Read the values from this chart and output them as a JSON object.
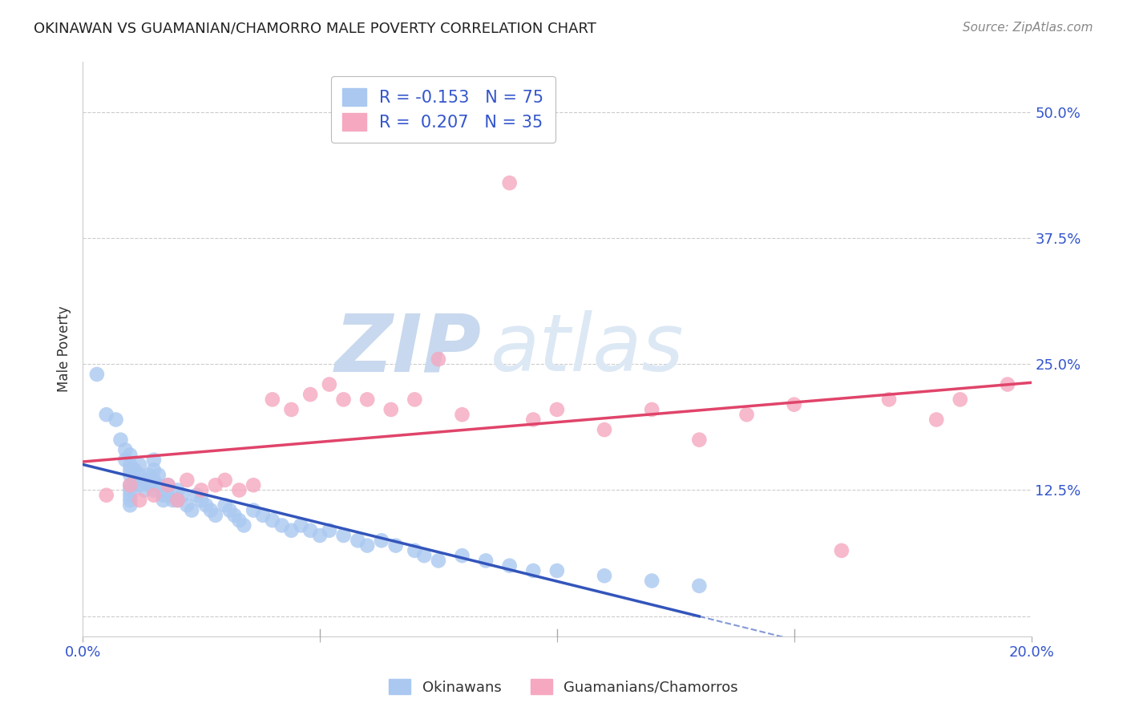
{
  "title": "OKINAWAN VS GUAMANIAN/CHAMORRO MALE POVERTY CORRELATION CHART",
  "source": "Source: ZipAtlas.com",
  "ylabel": "Male Poverty",
  "xlim": [
    0.0,
    0.2
  ],
  "ylim": [
    -0.02,
    0.55
  ],
  "ytick_vals": [
    0.0,
    0.125,
    0.25,
    0.375,
    0.5
  ],
  "ytick_labels": [
    "",
    "12.5%",
    "25.0%",
    "37.5%",
    "50.0%"
  ],
  "xtick_vals": [
    0.0,
    0.05,
    0.1,
    0.15,
    0.2
  ],
  "xtick_labels": [
    "0.0%",
    "",
    "",
    "",
    "20.0%"
  ],
  "background_color": "#ffffff",
  "grid_color": "#cccccc",
  "blue_color": "#aac8f0",
  "pink_color": "#f5a8c0",
  "blue_line_color": "#3355bb",
  "pink_line_color": "#e0446a",
  "blue_R": -0.153,
  "blue_N": 75,
  "pink_R": 0.207,
  "pink_N": 35,
  "watermark_zip": "ZIP",
  "watermark_atlas": "atlas",
  "watermark_color": "#ccddf5",
  "legend_label_blue": "Okinawans",
  "legend_label_pink": "Guamanians/Chamorros",
  "title_color": "#222222",
  "label_color": "#333333",
  "tick_label_color": "#3355cc",
  "source_color": "#888888",
  "blue_scatter_x": [
    0.003,
    0.005,
    0.007,
    0.008,
    0.009,
    0.009,
    0.01,
    0.01,
    0.01,
    0.01,
    0.01,
    0.01,
    0.01,
    0.01,
    0.01,
    0.011,
    0.011,
    0.012,
    0.012,
    0.012,
    0.013,
    0.013,
    0.014,
    0.014,
    0.015,
    0.015,
    0.015,
    0.015,
    0.016,
    0.016,
    0.017,
    0.017,
    0.018,
    0.018,
    0.019,
    0.02,
    0.02,
    0.021,
    0.022,
    0.023,
    0.024,
    0.025,
    0.026,
    0.027,
    0.028,
    0.03,
    0.031,
    0.032,
    0.033,
    0.034,
    0.036,
    0.038,
    0.04,
    0.042,
    0.044,
    0.046,
    0.048,
    0.05,
    0.052,
    0.055,
    0.058,
    0.06,
    0.063,
    0.066,
    0.07,
    0.072,
    0.075,
    0.08,
    0.085,
    0.09,
    0.095,
    0.1,
    0.11,
    0.12,
    0.13
  ],
  "blue_scatter_y": [
    0.24,
    0.2,
    0.195,
    0.175,
    0.165,
    0.155,
    0.16,
    0.15,
    0.145,
    0.14,
    0.13,
    0.125,
    0.12,
    0.115,
    0.11,
    0.145,
    0.135,
    0.15,
    0.14,
    0.13,
    0.135,
    0.125,
    0.14,
    0.13,
    0.155,
    0.145,
    0.135,
    0.125,
    0.14,
    0.13,
    0.12,
    0.115,
    0.13,
    0.12,
    0.115,
    0.125,
    0.115,
    0.12,
    0.11,
    0.105,
    0.12,
    0.115,
    0.11,
    0.105,
    0.1,
    0.11,
    0.105,
    0.1,
    0.095,
    0.09,
    0.105,
    0.1,
    0.095,
    0.09,
    0.085,
    0.09,
    0.085,
    0.08,
    0.085,
    0.08,
    0.075,
    0.07,
    0.075,
    0.07,
    0.065,
    0.06,
    0.055,
    0.06,
    0.055,
    0.05,
    0.045,
    0.045,
    0.04,
    0.035,
    0.03
  ],
  "pink_scatter_x": [
    0.005,
    0.01,
    0.012,
    0.015,
    0.018,
    0.02,
    0.022,
    0.025,
    0.028,
    0.03,
    0.033,
    0.036,
    0.04,
    0.044,
    0.048,
    0.052,
    0.055,
    0.06,
    0.065,
    0.07,
    0.075,
    0.08,
    0.09,
    0.095,
    0.1,
    0.11,
    0.12,
    0.13,
    0.14,
    0.15,
    0.16,
    0.17,
    0.18,
    0.185,
    0.195
  ],
  "pink_scatter_y": [
    0.12,
    0.13,
    0.115,
    0.12,
    0.13,
    0.115,
    0.135,
    0.125,
    0.13,
    0.135,
    0.125,
    0.13,
    0.215,
    0.205,
    0.22,
    0.23,
    0.215,
    0.215,
    0.205,
    0.215,
    0.255,
    0.2,
    0.43,
    0.195,
    0.205,
    0.185,
    0.205,
    0.175,
    0.2,
    0.21,
    0.065,
    0.215,
    0.195,
    0.215,
    0.23
  ]
}
